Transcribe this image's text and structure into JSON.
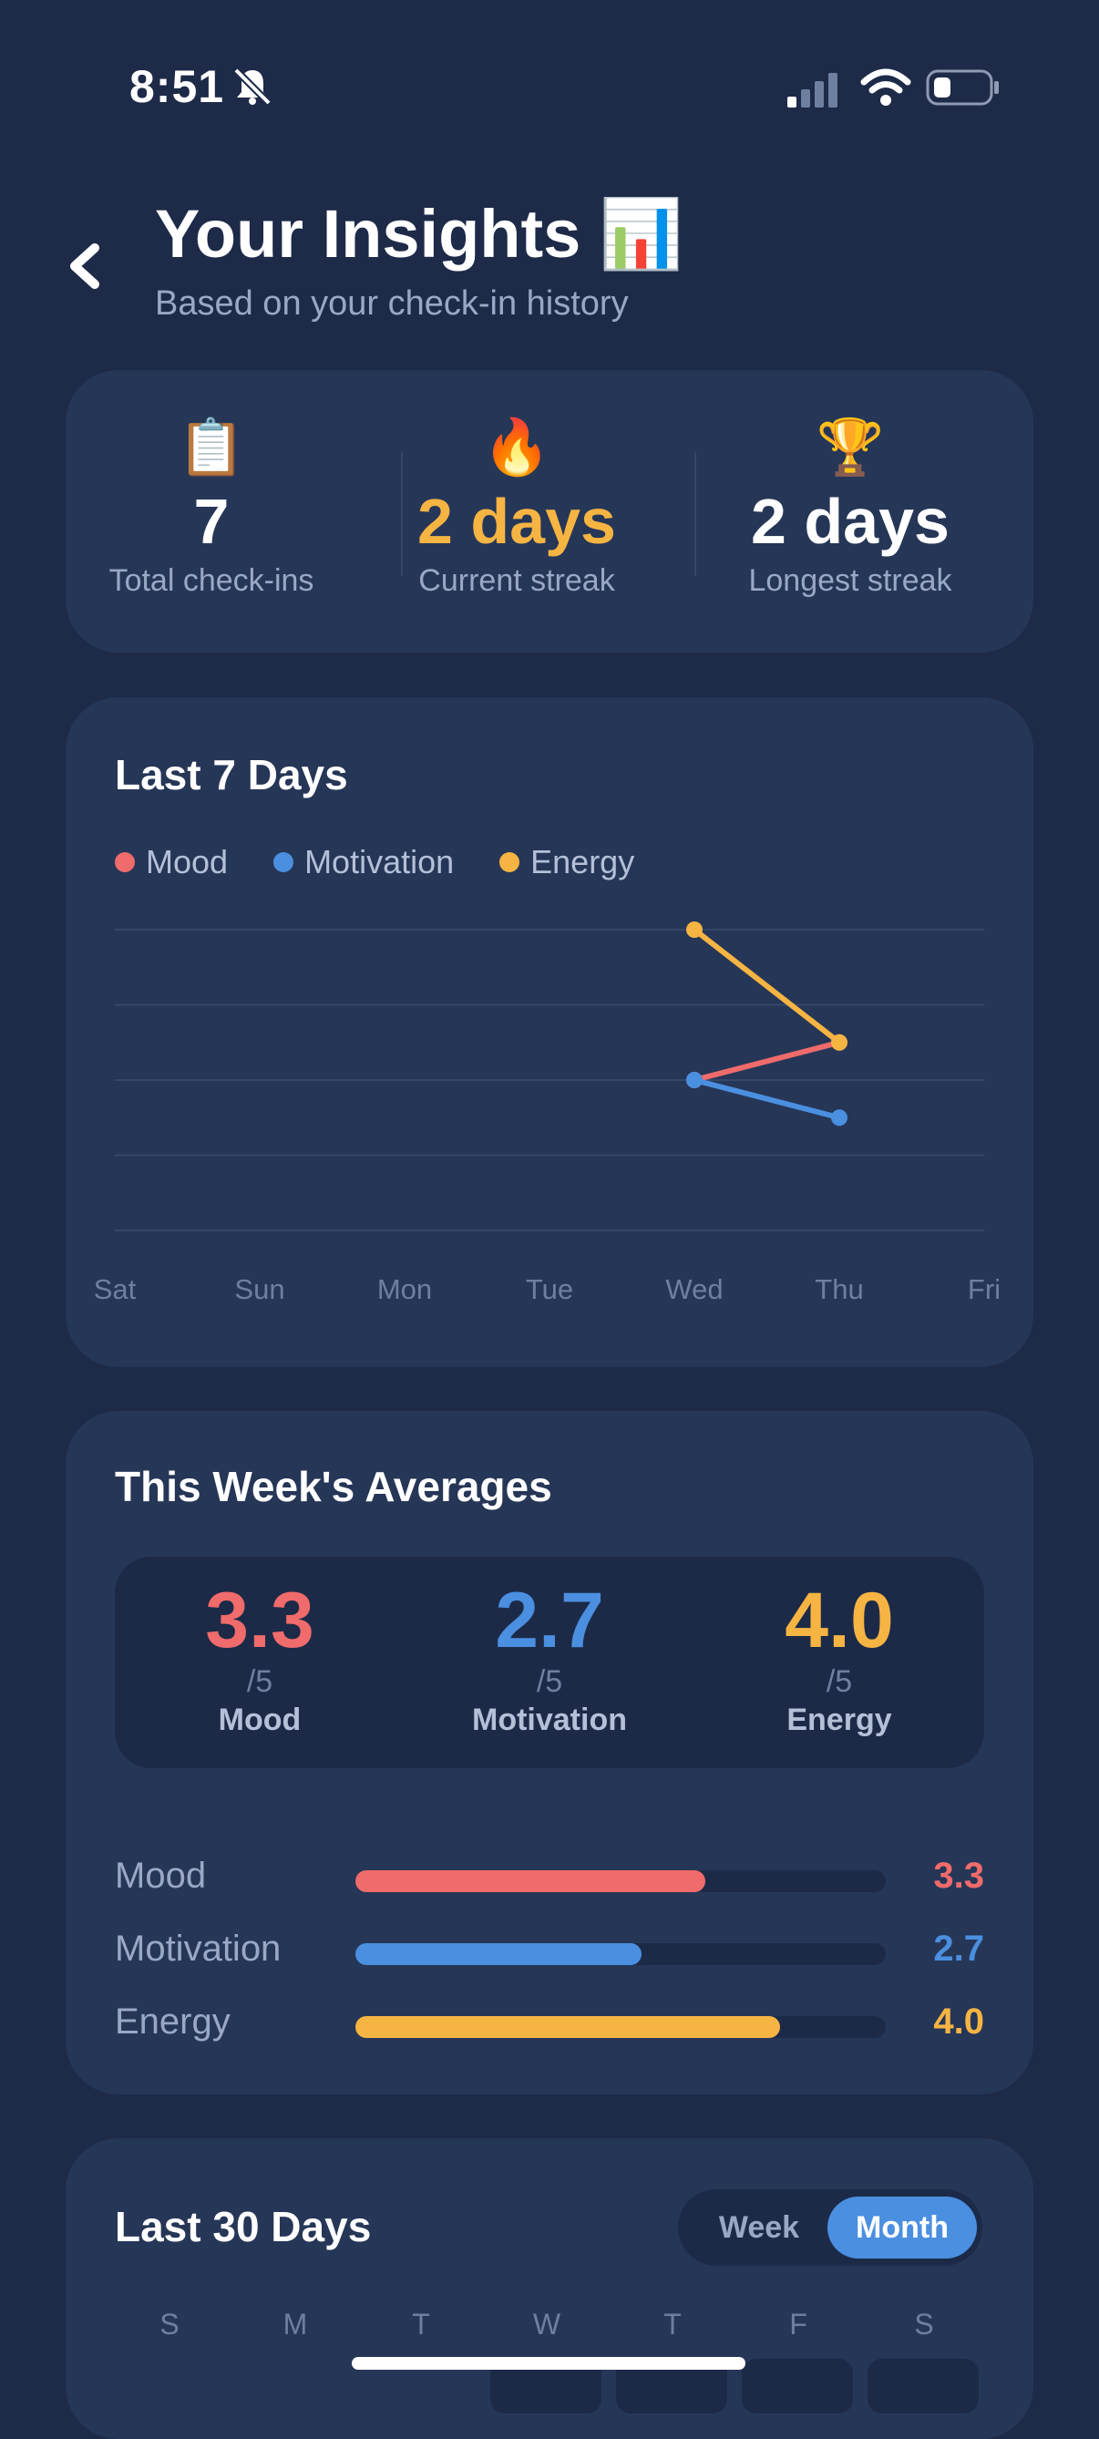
{
  "status_bar": {
    "time": "8:51"
  },
  "header": {
    "title": "Your Insights",
    "title_emoji": "📊",
    "subtitle": "Based on your check-in history"
  },
  "stats": [
    {
      "emoji": "📋",
      "value": "7",
      "label": "Total check-ins",
      "color": "#ffffff"
    },
    {
      "emoji": "🔥",
      "value": "2 days",
      "label": "Current streak",
      "color": "#f6b443"
    },
    {
      "emoji": "🏆",
      "value": "2 days",
      "label": "Longest streak",
      "color": "#ffffff"
    }
  ],
  "last7": {
    "title": "Last 7 Days",
    "legend": [
      {
        "name": "Mood",
        "color": "#f06b6b"
      },
      {
        "name": "Motivation",
        "color": "#4a8fe0"
      },
      {
        "name": "Energy",
        "color": "#f6b443"
      }
    ]
  },
  "chart_data": {
    "type": "line",
    "title": "Last 7 Days",
    "x": [
      "Sat",
      "Sun",
      "Mon",
      "Tue",
      "Wed",
      "Thu",
      "Fri"
    ],
    "ylim": [
      1,
      5
    ],
    "grid": true,
    "legend_position": "top-left",
    "series": [
      {
        "name": "Mood",
        "color": "#f06b6b",
        "values": [
          null,
          null,
          null,
          null,
          3,
          3.5,
          null
        ]
      },
      {
        "name": "Motivation",
        "color": "#4a8fe0",
        "values": [
          null,
          null,
          null,
          null,
          3,
          2.5,
          null
        ]
      },
      {
        "name": "Energy",
        "color": "#f6b443",
        "values": [
          null,
          null,
          null,
          null,
          5,
          3.5,
          null
        ]
      }
    ]
  },
  "averages": {
    "title": "This Week's Averages",
    "items": [
      {
        "value": "3.3",
        "denominator": "/5",
        "name": "Mood",
        "color": "#f06b6b",
        "fraction": 0.66
      },
      {
        "value": "2.7",
        "denominator": "/5",
        "name": "Motivation",
        "color": "#4a8fe0",
        "fraction": 0.54
      },
      {
        "value": "4.0",
        "denominator": "/5",
        "name": "Energy",
        "color": "#f6b443",
        "fraction": 0.8
      }
    ]
  },
  "last30": {
    "title": "Last 30 Days",
    "toggle": {
      "week": "Week",
      "month": "Month",
      "selected": "Month"
    },
    "weekdays": [
      "S",
      "M",
      "T",
      "W",
      "T",
      "F",
      "S"
    ]
  }
}
